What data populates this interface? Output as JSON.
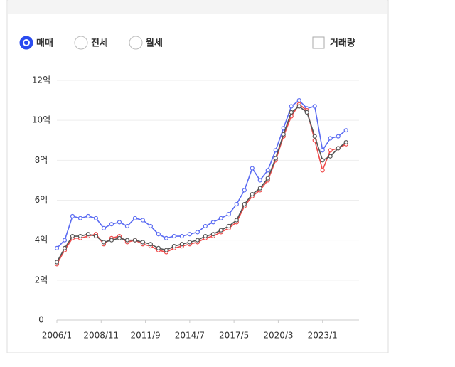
{
  "ui": {
    "radios": [
      "매매",
      "전세",
      "월세"
    ],
    "checkbox": "거래량"
  },
  "chart_data": {
    "type": "line",
    "x": [
      "2006/1",
      "2006/7",
      "2007/1",
      "2007/7",
      "2008/1",
      "2008/7",
      "2009/1",
      "2009/7",
      "2010/1",
      "2010/7",
      "2011/1",
      "2011/7",
      "2012/1",
      "2012/7",
      "2013/1",
      "2013/7",
      "2014/1",
      "2014/7",
      "2015/1",
      "2015/7",
      "2016/1",
      "2016/7",
      "2017/1",
      "2017/7",
      "2018/1",
      "2018/7",
      "2019/1",
      "2019/7",
      "2020/1",
      "2020/7",
      "2021/1",
      "2021/7",
      "2022/1",
      "2022/7",
      "2023/1",
      "2023/7",
      "2024/1",
      "2024/7"
    ],
    "series": [
      {
        "color": "#5b6cf2",
        "values": [
          3.6,
          4.0,
          5.2,
          5.1,
          5.2,
          5.1,
          4.6,
          4.8,
          4.9,
          4.7,
          5.1,
          5.0,
          4.7,
          4.3,
          4.1,
          4.2,
          4.2,
          4.3,
          4.4,
          4.7,
          4.9,
          5.1,
          5.3,
          5.8,
          6.5,
          7.6,
          7.0,
          7.5,
          8.5,
          9.6,
          10.7,
          11.0,
          10.6,
          10.7,
          8.5,
          9.1,
          9.2,
          9.5
        ]
      },
      {
        "color": "#ef4a4a",
        "values": [
          2.8,
          3.5,
          4.1,
          4.1,
          4.2,
          4.3,
          3.8,
          4.1,
          4.2,
          3.9,
          4.0,
          3.8,
          3.7,
          3.5,
          3.4,
          3.6,
          3.7,
          3.8,
          3.9,
          4.1,
          4.2,
          4.4,
          4.6,
          4.9,
          5.7,
          6.2,
          6.5,
          7.0,
          8.0,
          9.2,
          10.2,
          10.8,
          10.5,
          9.0,
          7.5,
          8.5,
          8.6,
          8.8
        ]
      },
      {
        "color": "#555555",
        "values": [
          2.9,
          3.6,
          4.2,
          4.2,
          4.3,
          4.2,
          3.9,
          4.0,
          4.1,
          4.0,
          4.0,
          3.9,
          3.8,
          3.6,
          3.5,
          3.7,
          3.8,
          3.9,
          4.0,
          4.2,
          4.3,
          4.5,
          4.7,
          5.0,
          5.8,
          6.3,
          6.6,
          7.1,
          8.1,
          9.3,
          10.4,
          10.7,
          10.4,
          9.2,
          8.0,
          8.2,
          8.6,
          8.9
        ]
      }
    ],
    "xlim": [
      "2006/1",
      "2025/5"
    ],
    "xticks": [
      "2006/1",
      "2008/11",
      "2011/9",
      "2014/7",
      "2017/5",
      "2020/3",
      "2023/1"
    ],
    "ylim": [
      0,
      12
    ],
    "yticks": [
      0,
      {
        "value": 2,
        "label": "2억"
      },
      {
        "value": 4,
        "label": "4억"
      },
      {
        "value": 6,
        "label": "6억"
      },
      {
        "value": 8,
        "label": "8억"
      },
      {
        "value": 10,
        "label": "10억"
      },
      {
        "value": 12,
        "label": "12억"
      }
    ],
    "grid": true
  }
}
